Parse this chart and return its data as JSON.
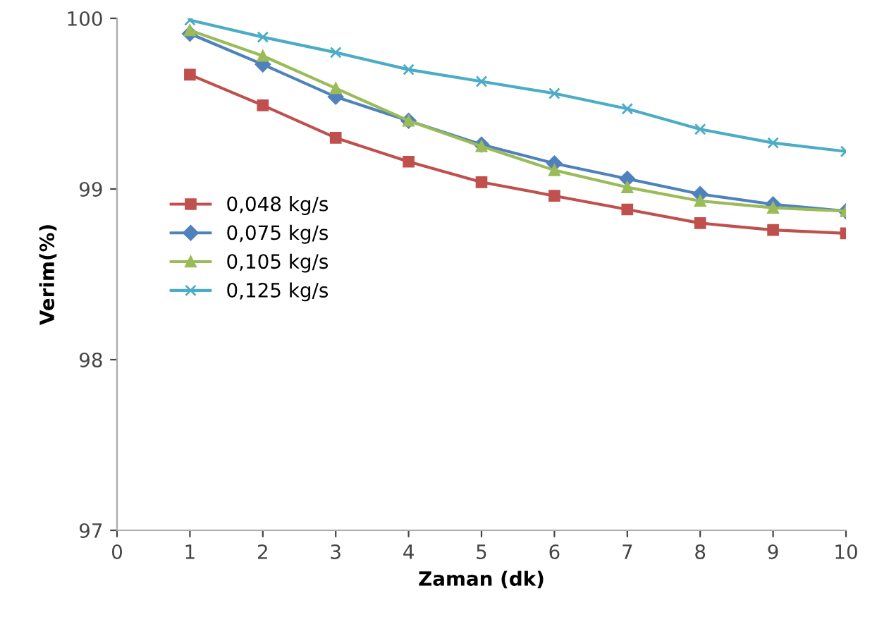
{
  "chart_data": {
    "type": "line",
    "xlabel": "Zaman (dk)",
    "ylabel": "Verim(%)",
    "x": [
      1,
      2,
      3,
      4,
      5,
      6,
      7,
      8,
      9,
      10
    ],
    "series": [
      {
        "name": "0,048 kg/s",
        "color": "#c0504d",
        "marker": "square",
        "values": [
          99.67,
          99.49,
          99.3,
          99.16,
          99.04,
          98.96,
          98.88,
          98.8,
          98.76,
          98.74
        ]
      },
      {
        "name": "0,075 kg/s",
        "color": "#4f81bd",
        "marker": "diamond",
        "values": [
          99.91,
          99.73,
          99.54,
          99.4,
          99.26,
          99.15,
          99.06,
          98.97,
          98.91,
          98.87
        ]
      },
      {
        "name": "0,105 kg/s",
        "color": "#9bbb59",
        "marker": "triangle",
        "values": [
          99.93,
          99.78,
          99.59,
          99.4,
          99.25,
          99.11,
          99.01,
          98.93,
          98.89,
          98.87
        ]
      },
      {
        "name": "0,125 kg/s",
        "color": "#4bacc6",
        "marker": "cross",
        "values": [
          99.99,
          99.89,
          99.8,
          99.7,
          99.63,
          99.56,
          99.47,
          99.35,
          99.27,
          99.22
        ]
      }
    ],
    "xlim": [
      0,
      10
    ],
    "xticks": [
      0,
      1,
      2,
      3,
      4,
      5,
      6,
      7,
      8,
      9,
      10
    ],
    "ylim": [
      97,
      100
    ],
    "yticks": [
      97,
      98,
      99,
      100
    ],
    "grid": false,
    "legend": "left",
    "line_style": "solid"
  }
}
